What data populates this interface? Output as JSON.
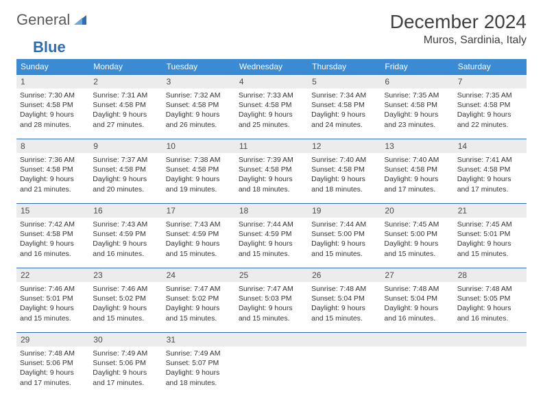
{
  "brand": {
    "part1": "General",
    "part2": "Blue"
  },
  "title": "December 2024",
  "location": "Muros, Sardinia, Italy",
  "colors": {
    "header_bg": "#3b8bd4",
    "header_text": "#ffffff",
    "daynum_bg": "#ececec",
    "daynum_border": "#2d6db3",
    "body_text": "#333333",
    "brand_gray": "#5a5a5a",
    "brand_blue": "#2d6db3"
  },
  "day_headers": [
    "Sunday",
    "Monday",
    "Tuesday",
    "Wednesday",
    "Thursday",
    "Friday",
    "Saturday"
  ],
  "weeks": [
    [
      {
        "n": "1",
        "sunrise": "7:30 AM",
        "sunset": "4:58 PM",
        "dl1": "Daylight: 9 hours",
        "dl2": "and 28 minutes."
      },
      {
        "n": "2",
        "sunrise": "7:31 AM",
        "sunset": "4:58 PM",
        "dl1": "Daylight: 9 hours",
        "dl2": "and 27 minutes."
      },
      {
        "n": "3",
        "sunrise": "7:32 AM",
        "sunset": "4:58 PM",
        "dl1": "Daylight: 9 hours",
        "dl2": "and 26 minutes."
      },
      {
        "n": "4",
        "sunrise": "7:33 AM",
        "sunset": "4:58 PM",
        "dl1": "Daylight: 9 hours",
        "dl2": "and 25 minutes."
      },
      {
        "n": "5",
        "sunrise": "7:34 AM",
        "sunset": "4:58 PM",
        "dl1": "Daylight: 9 hours",
        "dl2": "and 24 minutes."
      },
      {
        "n": "6",
        "sunrise": "7:35 AM",
        "sunset": "4:58 PM",
        "dl1": "Daylight: 9 hours",
        "dl2": "and 23 minutes."
      },
      {
        "n": "7",
        "sunrise": "7:35 AM",
        "sunset": "4:58 PM",
        "dl1": "Daylight: 9 hours",
        "dl2": "and 22 minutes."
      }
    ],
    [
      {
        "n": "8",
        "sunrise": "7:36 AM",
        "sunset": "4:58 PM",
        "dl1": "Daylight: 9 hours",
        "dl2": "and 21 minutes."
      },
      {
        "n": "9",
        "sunrise": "7:37 AM",
        "sunset": "4:58 PM",
        "dl1": "Daylight: 9 hours",
        "dl2": "and 20 minutes."
      },
      {
        "n": "10",
        "sunrise": "7:38 AM",
        "sunset": "4:58 PM",
        "dl1": "Daylight: 9 hours",
        "dl2": "and 19 minutes."
      },
      {
        "n": "11",
        "sunrise": "7:39 AM",
        "sunset": "4:58 PM",
        "dl1": "Daylight: 9 hours",
        "dl2": "and 18 minutes."
      },
      {
        "n": "12",
        "sunrise": "7:40 AM",
        "sunset": "4:58 PM",
        "dl1": "Daylight: 9 hours",
        "dl2": "and 18 minutes."
      },
      {
        "n": "13",
        "sunrise": "7:40 AM",
        "sunset": "4:58 PM",
        "dl1": "Daylight: 9 hours",
        "dl2": "and 17 minutes."
      },
      {
        "n": "14",
        "sunrise": "7:41 AM",
        "sunset": "4:58 PM",
        "dl1": "Daylight: 9 hours",
        "dl2": "and 17 minutes."
      }
    ],
    [
      {
        "n": "15",
        "sunrise": "7:42 AM",
        "sunset": "4:58 PM",
        "dl1": "Daylight: 9 hours",
        "dl2": "and 16 minutes."
      },
      {
        "n": "16",
        "sunrise": "7:43 AM",
        "sunset": "4:59 PM",
        "dl1": "Daylight: 9 hours",
        "dl2": "and 16 minutes."
      },
      {
        "n": "17",
        "sunrise": "7:43 AM",
        "sunset": "4:59 PM",
        "dl1": "Daylight: 9 hours",
        "dl2": "and 15 minutes."
      },
      {
        "n": "18",
        "sunrise": "7:44 AM",
        "sunset": "4:59 PM",
        "dl1": "Daylight: 9 hours",
        "dl2": "and 15 minutes."
      },
      {
        "n": "19",
        "sunrise": "7:44 AM",
        "sunset": "5:00 PM",
        "dl1": "Daylight: 9 hours",
        "dl2": "and 15 minutes."
      },
      {
        "n": "20",
        "sunrise": "7:45 AM",
        "sunset": "5:00 PM",
        "dl1": "Daylight: 9 hours",
        "dl2": "and 15 minutes."
      },
      {
        "n": "21",
        "sunrise": "7:45 AM",
        "sunset": "5:01 PM",
        "dl1": "Daylight: 9 hours",
        "dl2": "and 15 minutes."
      }
    ],
    [
      {
        "n": "22",
        "sunrise": "7:46 AM",
        "sunset": "5:01 PM",
        "dl1": "Daylight: 9 hours",
        "dl2": "and 15 minutes."
      },
      {
        "n": "23",
        "sunrise": "7:46 AM",
        "sunset": "5:02 PM",
        "dl1": "Daylight: 9 hours",
        "dl2": "and 15 minutes."
      },
      {
        "n": "24",
        "sunrise": "7:47 AM",
        "sunset": "5:02 PM",
        "dl1": "Daylight: 9 hours",
        "dl2": "and 15 minutes."
      },
      {
        "n": "25",
        "sunrise": "7:47 AM",
        "sunset": "5:03 PM",
        "dl1": "Daylight: 9 hours",
        "dl2": "and 15 minutes."
      },
      {
        "n": "26",
        "sunrise": "7:48 AM",
        "sunset": "5:04 PM",
        "dl1": "Daylight: 9 hours",
        "dl2": "and 15 minutes."
      },
      {
        "n": "27",
        "sunrise": "7:48 AM",
        "sunset": "5:04 PM",
        "dl1": "Daylight: 9 hours",
        "dl2": "and 16 minutes."
      },
      {
        "n": "28",
        "sunrise": "7:48 AM",
        "sunset": "5:05 PM",
        "dl1": "Daylight: 9 hours",
        "dl2": "and 16 minutes."
      }
    ],
    [
      {
        "n": "29",
        "sunrise": "7:48 AM",
        "sunset": "5:06 PM",
        "dl1": "Daylight: 9 hours",
        "dl2": "and 17 minutes."
      },
      {
        "n": "30",
        "sunrise": "7:49 AM",
        "sunset": "5:06 PM",
        "dl1": "Daylight: 9 hours",
        "dl2": "and 17 minutes."
      },
      {
        "n": "31",
        "sunrise": "7:49 AM",
        "sunset": "5:07 PM",
        "dl1": "Daylight: 9 hours",
        "dl2": "and 18 minutes."
      },
      null,
      null,
      null,
      null
    ]
  ],
  "labels": {
    "sunrise": "Sunrise:",
    "sunset": "Sunset:"
  }
}
